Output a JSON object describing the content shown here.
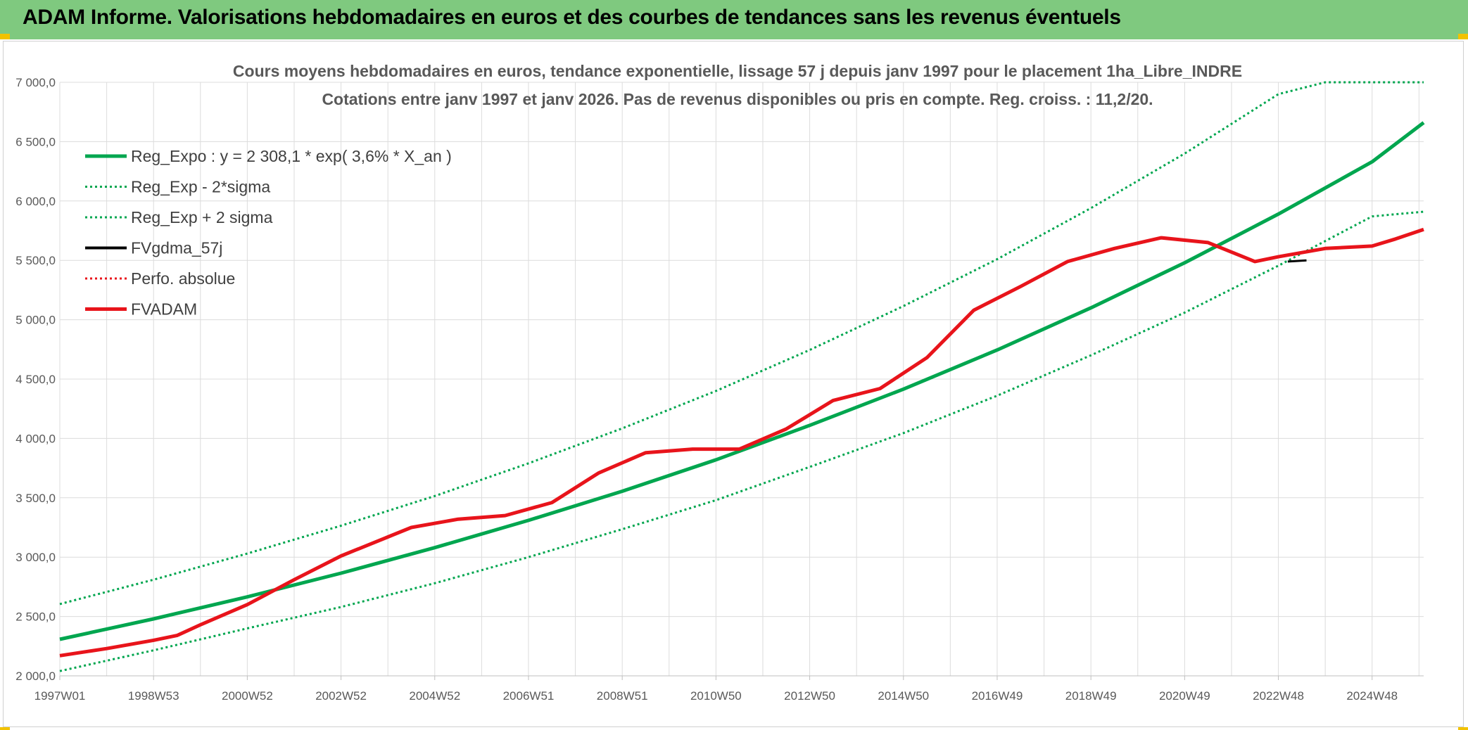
{
  "header": {
    "title": "ADAM Informe. Valorisations hebdomadaires en euros et des courbes de tendances sans les revenus éventuels"
  },
  "colors": {
    "banner": "#7fc97f",
    "corner_accent": "#f2c200",
    "reg_green": "#00a64f",
    "adam_red": "#e8141b"
  },
  "chart_data": {
    "type": "line",
    "title": "Cours moyens hebdomadaires en euros, tendance exponentielle, lissage 57 j depuis janv 1997 pour le placement 1ha_Libre_INDRE",
    "subtitle": "Cotations entre janv 1997 et janv 2026. Pas de revenus disponibles ou pris en compte. Reg. croiss. : 11,2/20.",
    "xlabel": "",
    "ylabel": "",
    "x_ticks": [
      "1997W01",
      "1998W53",
      "2000W52",
      "2002W52",
      "2004W52",
      "2006W51",
      "2008W51",
      "2010W50",
      "2012W50",
      "2014W50",
      "2016W49",
      "2018W49",
      "2020W49",
      "2022W48",
      "2024W48"
    ],
    "x_range": [
      1997.0,
      2026.1
    ],
    "ylim": [
      2000,
      7000
    ],
    "y_ticks": [
      "2 000,0",
      "2 500,0",
      "3 000,0",
      "3 500,0",
      "4 000,0",
      "4 500,0",
      "5 000,0",
      "5 500,0",
      "6 000,0",
      "6 500,0",
      "7 000,0"
    ],
    "grid": true,
    "legend_position": "top-left",
    "series": [
      {
        "name": "Reg_Expo : y = 2 308,1 * exp( 3,6% *  X_an )",
        "color": "#00a64f",
        "style": "solid",
        "x": [
          1997.0,
          1999.0,
          2001.0,
          2003.0,
          2005.0,
          2007.0,
          2009.0,
          2011.0,
          2013.0,
          2015.0,
          2017.0,
          2019.0,
          2021.0,
          2023.0,
          2025.0,
          2026.1
        ],
        "y": [
          2308,
          2480,
          2665,
          2865,
          3080,
          3310,
          3555,
          3820,
          4110,
          4415,
          4745,
          5100,
          5480,
          5890,
          6330,
          6660
        ]
      },
      {
        "name": "Reg_Exp - 2*sigma",
        "color": "#00a64f",
        "style": "dotted",
        "x": [
          1997.0,
          1999.0,
          2001.0,
          2003.0,
          2005.0,
          2007.0,
          2009.0,
          2011.0,
          2013.0,
          2015.0,
          2017.0,
          2019.0,
          2021.0,
          2023.0,
          2025.0,
          2026.1
        ],
        "y": [
          2040,
          2215,
          2400,
          2580,
          2780,
          3000,
          3235,
          3480,
          3760,
          4045,
          4360,
          4700,
          5060,
          5455,
          5870,
          5910
        ]
      },
      {
        "name": "Reg_Exp + 2 sigma",
        "color": "#00a64f",
        "style": "dotted",
        "x": [
          1997.0,
          1999.0,
          2001.0,
          2003.0,
          2005.0,
          2007.0,
          2009.0,
          2011.0,
          2013.0,
          2015.0,
          2017.0,
          2019.0,
          2021.0,
          2023.0,
          2024.0,
          2025.0,
          2026.1
        ],
        "y": [
          2605,
          2810,
          3030,
          3265,
          3515,
          3790,
          4085,
          4400,
          4745,
          5115,
          5510,
          5940,
          6400,
          6900,
          7000,
          7000,
          7000
        ]
      },
      {
        "name": "FVgdma_57j",
        "color": "#000000",
        "style": "solid",
        "x": [
          2023.2,
          2023.6
        ],
        "y": [
          5490,
          5500
        ]
      },
      {
        "name": "Perfo. absolue",
        "color": "#e8141b",
        "style": "dotted",
        "x": [],
        "y": []
      },
      {
        "name": "FVADAM",
        "color": "#e8141b",
        "style": "solid",
        "x": [
          1997.0,
          1998.0,
          1999.0,
          1999.5,
          2000.0,
          2001.0,
          2002.0,
          2003.0,
          2004.0,
          2004.5,
          2005.5,
          2006.5,
          2007.5,
          2008.5,
          2009.5,
          2010.5,
          2011.5,
          2012.5,
          2013.5,
          2014.5,
          2015.5,
          2016.5,
          2017.5,
          2018.5,
          2019.5,
          2020.5,
          2021.5,
          2022.5,
          2023.0,
          2024.0,
          2025.0,
          2025.5,
          2026.1
        ],
        "y": [
          2170,
          2230,
          2300,
          2340,
          2430,
          2600,
          2810,
          3010,
          3170,
          3250,
          3320,
          3350,
          3460,
          3710,
          3880,
          3910,
          3910,
          4080,
          4320,
          4420,
          4680,
          5080,
          5280,
          5490,
          5600,
          5690,
          5650,
          5490,
          5530,
          5600,
          5620,
          5680,
          5760
        ]
      }
    ]
  }
}
